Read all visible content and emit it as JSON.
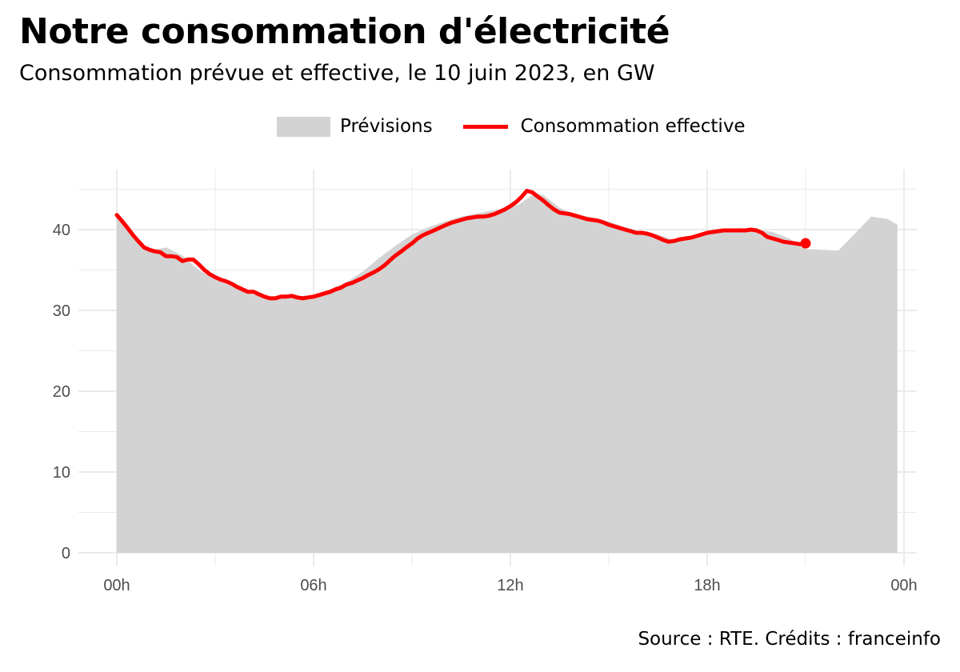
{
  "header": {
    "title": "Notre consommation d'électricité",
    "subtitle": "Consommation prévue et effective, le 10 juin 2023, en GW"
  },
  "legend": {
    "forecast_label": "Prévisions",
    "actual_label": "Consommation effective"
  },
  "footer": {
    "source": "Source : RTE. Crédits : franceinfo"
  },
  "colors": {
    "forecast_fill": "#d3d3d3",
    "actual_line": "#ff0000",
    "grid": "#ebebeb",
    "tick_text": "#4d4d4d"
  },
  "chart_data": {
    "type": "area",
    "title": "Notre consommation d'électricité",
    "subtitle": "Consommation prévue et effective, le 10 juin 2023, en GW",
    "xlabel": "",
    "ylabel": "",
    "xlim": [
      0,
      24
    ],
    "ylim": [
      0,
      46
    ],
    "x_ticks": [
      0,
      6,
      12,
      18,
      24
    ],
    "x_tick_labels": [
      "00h",
      "06h",
      "12h",
      "18h",
      "00h"
    ],
    "y_ticks": [
      0,
      10,
      20,
      30,
      40
    ],
    "y_tick_labels": [
      "0",
      "10",
      "20",
      "30",
      "40"
    ],
    "grid": true,
    "legend_position": "top",
    "series": [
      {
        "name": "Prévisions",
        "kind": "area",
        "x": [
          0,
          0.5,
          1,
          1.5,
          2,
          2.5,
          3,
          3.5,
          4,
          4.5,
          5,
          5.5,
          6,
          6.5,
          7,
          7.5,
          8,
          8.5,
          9,
          9.5,
          10,
          10.5,
          11,
          11.5,
          12,
          12.25,
          12.5,
          12.75,
          13,
          13.5,
          14,
          14.5,
          15,
          15.5,
          16,
          16.5,
          17,
          17.5,
          18,
          18.5,
          19,
          19.5,
          20,
          20.5,
          21,
          21.5,
          22,
          22.5,
          23,
          23.5,
          23.8
        ],
        "values": [
          41.7,
          39.4,
          37.4,
          37.8,
          36.8,
          35.0,
          33.8,
          33.0,
          32.1,
          31.6,
          31.6,
          31.7,
          31.9,
          32.6,
          33.5,
          34.8,
          36.5,
          38.0,
          39.4,
          40.3,
          41.0,
          41.6,
          42.0,
          42.4,
          42.8,
          43.1,
          43.8,
          44.5,
          44.3,
          42.7,
          41.9,
          41.5,
          41.0,
          40.3,
          39.7,
          39.4,
          38.7,
          38.9,
          39.4,
          39.8,
          40.2,
          40.0,
          39.7,
          38.9,
          37.6,
          37.5,
          37.4,
          39.5,
          41.6,
          41.3,
          40.6
        ]
      },
      {
        "name": "Consommation effective",
        "kind": "line",
        "x": [
          0,
          0.17,
          0.33,
          0.5,
          0.67,
          0.83,
          1,
          1.17,
          1.33,
          1.5,
          1.67,
          1.83,
          2,
          2.17,
          2.33,
          2.5,
          2.67,
          2.83,
          3,
          3.17,
          3.33,
          3.5,
          3.67,
          3.83,
          4,
          4.17,
          4.33,
          4.5,
          4.67,
          4.83,
          5,
          5.17,
          5.33,
          5.5,
          5.67,
          5.83,
          6,
          6.17,
          6.33,
          6.5,
          6.67,
          6.83,
          7,
          7.17,
          7.33,
          7.5,
          7.67,
          7.83,
          8,
          8.17,
          8.33,
          8.5,
          8.67,
          8.83,
          9,
          9.17,
          9.33,
          9.5,
          9.67,
          9.83,
          10,
          10.17,
          10.33,
          10.5,
          10.67,
          10.83,
          11,
          11.17,
          11.33,
          11.5,
          11.67,
          11.83,
          12,
          12.17,
          12.33,
          12.5,
          12.67,
          12.83,
          13,
          13.17,
          13.33,
          13.5,
          13.67,
          13.83,
          14,
          14.17,
          14.33,
          14.5,
          14.67,
          14.83,
          15,
          15.17,
          15.33,
          15.5,
          15.67,
          15.83,
          16,
          16.17,
          16.33,
          16.5,
          16.67,
          16.83,
          17,
          17.17,
          17.33,
          17.5,
          17.67,
          17.83,
          18,
          18.17,
          18.33,
          18.5,
          18.67,
          18.83,
          19,
          19.17,
          19.33,
          19.5,
          19.67,
          19.83,
          20,
          20.17,
          20.33,
          20.5,
          20.67,
          20.83,
          21
        ],
        "values": [
          41.8,
          41.0,
          40.2,
          39.3,
          38.5,
          37.8,
          37.5,
          37.3,
          37.2,
          36.7,
          36.7,
          36.6,
          36.1,
          36.3,
          36.3,
          35.7,
          35.0,
          34.5,
          34.1,
          33.8,
          33.6,
          33.3,
          32.9,
          32.6,
          32.3,
          32.3,
          32.0,
          31.7,
          31.5,
          31.5,
          31.7,
          31.7,
          31.8,
          31.6,
          31.5,
          31.6,
          31.7,
          31.9,
          32.1,
          32.3,
          32.6,
          32.8,
          33.2,
          33.4,
          33.7,
          34.0,
          34.4,
          34.7,
          35.1,
          35.6,
          36.2,
          36.8,
          37.3,
          37.8,
          38.3,
          38.9,
          39.3,
          39.6,
          39.9,
          40.2,
          40.5,
          40.8,
          41.0,
          41.2,
          41.4,
          41.5,
          41.6,
          41.6,
          41.7,
          41.9,
          42.2,
          42.5,
          42.9,
          43.4,
          44.0,
          44.8,
          44.6,
          44.1,
          43.6,
          43.0,
          42.5,
          42.1,
          42.0,
          41.9,
          41.7,
          41.5,
          41.3,
          41.2,
          41.1,
          40.9,
          40.6,
          40.4,
          40.2,
          40.0,
          39.8,
          39.6,
          39.6,
          39.5,
          39.3,
          39.0,
          38.7,
          38.5,
          38.6,
          38.8,
          38.9,
          39.0,
          39.2,
          39.4,
          39.6,
          39.7,
          39.8,
          39.9,
          39.9,
          39.9,
          39.9,
          39.9,
          40.0,
          39.9,
          39.6,
          39.1,
          38.9,
          38.7,
          38.5,
          38.4,
          38.3,
          38.2,
          38.3
        ]
      }
    ],
    "last_point": {
      "x": 21,
      "y": 38.3
    }
  }
}
